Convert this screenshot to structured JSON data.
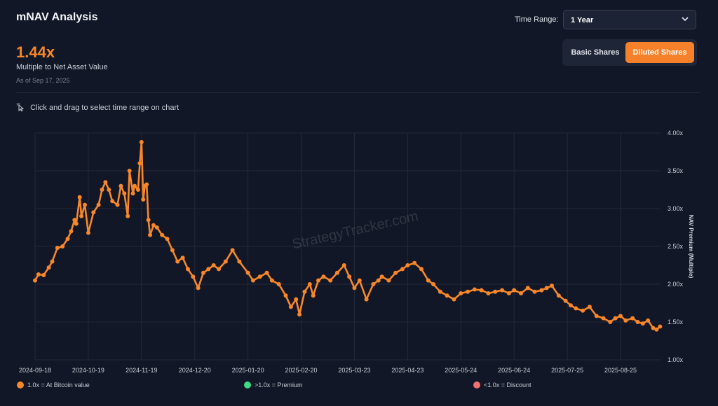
{
  "header": {
    "title": "mNAV Analysis",
    "metric_value": "1.44x",
    "metric_label": "Multiple to Net Asset Value",
    "as_of": "As of Sep 17, 2025"
  },
  "controls": {
    "time_range_label": "Time Range:",
    "time_range_value": "1 Year",
    "share_buttons": [
      "Basic Shares",
      "Diluted Shares"
    ],
    "active_share_button": "Diluted Shares"
  },
  "hint": "Click and drag to select time range on chart",
  "watermark": "StrategyTracker.com",
  "legend": [
    {
      "label": "1.0x = At Bitcoin value",
      "color": "#f7872a"
    },
    {
      "label": ">1.0x = Premium",
      "color": "#3ddc84"
    },
    {
      "label": "<1.0x = Discount",
      "color": "#f07070"
    }
  ],
  "colors": {
    "accent": "#f7872a",
    "background": "#111726",
    "grid": "#252c3b"
  },
  "chart_data": {
    "type": "line",
    "ylabel": "NAV Premium (Multiple)",
    "ylim": [
      1.0,
      4.0
    ],
    "y_ticks": [
      "1.00x",
      "1.50x",
      "2.00x",
      "2.50x",
      "3.00x",
      "3.50x",
      "4.00x"
    ],
    "x_tick_labels": [
      "2024-09-18",
      "2024-10-19",
      "2024-11-19",
      "2024-12-20",
      "2025-01-20",
      "2025-02-20",
      "2025-03-23",
      "2025-04-23",
      "2025-05-24",
      "2025-06-24",
      "2025-07-25",
      "2025-08-25"
    ],
    "grid": true,
    "series": [
      {
        "color": "#f7872a",
        "x": [
          "2024-09-18",
          "2024-09-20",
          "2024-09-23",
          "2024-09-26",
          "2024-09-28",
          "2024-10-01",
          "2024-10-04",
          "2024-10-07",
          "2024-10-09",
          "2024-10-11",
          "2024-10-12",
          "2024-10-14",
          "2024-10-15",
          "2024-10-17",
          "2024-10-19",
          "2024-10-22",
          "2024-10-25",
          "2024-10-27",
          "2024-10-29",
          "2024-10-31",
          "2024-11-02",
          "2024-11-05",
          "2024-11-07",
          "2024-11-09",
          "2024-11-11",
          "2024-11-12",
          "2024-11-14",
          "2024-11-15",
          "2024-11-17",
          "2024-11-18",
          "2024-11-19",
          "2024-11-20",
          "2024-11-21",
          "2024-11-22",
          "2024-11-23",
          "2024-11-24",
          "2024-11-26",
          "2024-11-28",
          "2024-12-01",
          "2024-12-04",
          "2024-12-07",
          "2024-12-10",
          "2024-12-13",
          "2024-12-16",
          "2024-12-19",
          "2024-12-22",
          "2024-12-25",
          "2024-12-28",
          "2024-12-31",
          "2025-01-03",
          "2025-01-07",
          "2025-01-11",
          "2025-01-15",
          "2025-01-20",
          "2025-01-23",
          "2025-01-27",
          "2025-01-31",
          "2025-02-03",
          "2025-02-07",
          "2025-02-11",
          "2025-02-14",
          "2025-02-17",
          "2025-02-19",
          "2025-02-22",
          "2025-02-25",
          "2025-02-27",
          "2025-03-02",
          "2025-03-05",
          "2025-03-09",
          "2025-03-13",
          "2025-03-17",
          "2025-03-20",
          "2025-03-23",
          "2025-03-26",
          "2025-03-30",
          "2025-04-03",
          "2025-04-06",
          "2025-04-08",
          "2025-04-12",
          "2025-04-16",
          "2025-04-20",
          "2025-04-23",
          "2025-04-27",
          "2025-05-01",
          "2025-05-05",
          "2025-05-08",
          "2025-05-12",
          "2025-05-16",
          "2025-05-20",
          "2025-05-24",
          "2025-05-28",
          "2025-06-01",
          "2025-06-05",
          "2025-06-09",
          "2025-06-13",
          "2025-06-17",
          "2025-06-21",
          "2025-06-24",
          "2025-06-28",
          "2025-07-02",
          "2025-07-06",
          "2025-07-10",
          "2025-07-13",
          "2025-07-16",
          "2025-07-20",
          "2025-07-24",
          "2025-07-27",
          "2025-07-30",
          "2025-08-03",
          "2025-08-07",
          "2025-08-11",
          "2025-08-15",
          "2025-08-19",
          "2025-08-22",
          "2025-08-25",
          "2025-08-28",
          "2025-09-01",
          "2025-09-04",
          "2025-09-07",
          "2025-09-10",
          "2025-09-13",
          "2025-09-15",
          "2025-09-17"
        ],
        "y": [
          2.05,
          2.13,
          2.12,
          2.22,
          2.3,
          2.48,
          2.5,
          2.6,
          2.7,
          2.85,
          2.8,
          3.15,
          2.9,
          3.05,
          2.68,
          2.95,
          3.05,
          3.25,
          3.35,
          3.25,
          3.1,
          3.05,
          3.3,
          3.2,
          2.9,
          3.5,
          3.2,
          3.3,
          3.25,
          3.6,
          3.88,
          3.12,
          3.3,
          3.32,
          2.85,
          2.65,
          2.78,
          2.75,
          2.65,
          2.6,
          2.45,
          2.3,
          2.35,
          2.2,
          2.1,
          1.95,
          2.15,
          2.2,
          2.25,
          2.2,
          2.3,
          2.45,
          2.3,
          2.15,
          2.05,
          2.1,
          2.15,
          2.05,
          2.0,
          1.85,
          1.7,
          1.8,
          1.6,
          1.9,
          2.0,
          1.85,
          2.05,
          2.1,
          2.05,
          2.15,
          2.25,
          2.1,
          1.95,
          2.05,
          1.8,
          2.0,
          2.05,
          2.1,
          2.05,
          2.15,
          2.2,
          2.25,
          2.28,
          2.2,
          2.05,
          2.0,
          1.9,
          1.85,
          1.8,
          1.88,
          1.9,
          1.93,
          1.92,
          1.88,
          1.9,
          1.92,
          1.88,
          1.92,
          1.88,
          1.95,
          1.9,
          1.92,
          1.95,
          1.98,
          1.85,
          1.78,
          1.72,
          1.68,
          1.65,
          1.7,
          1.58,
          1.55,
          1.5,
          1.55,
          1.58,
          1.52,
          1.55,
          1.5,
          1.48,
          1.52,
          1.42,
          1.4,
          1.44
        ]
      }
    ]
  }
}
